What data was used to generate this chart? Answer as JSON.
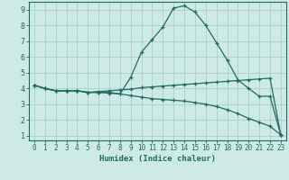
{
  "xlabel": "Humidex (Indice chaleur)",
  "bg_color": "#ceeae6",
  "grid_color": "#aacfcb",
  "line_color": "#1f6b60",
  "xlim": [
    -0.5,
    23.5
  ],
  "ylim": [
    0.7,
    9.5
  ],
  "xticks": [
    0,
    1,
    2,
    3,
    4,
    5,
    6,
    7,
    8,
    9,
    10,
    11,
    12,
    13,
    14,
    15,
    16,
    17,
    18,
    19,
    20,
    21,
    22,
    23
  ],
  "yticks": [
    1,
    2,
    3,
    4,
    5,
    6,
    7,
    8,
    9
  ],
  "line1_x": [
    0,
    1,
    2,
    3,
    4,
    5,
    6,
    7,
    8,
    9,
    10,
    11,
    12,
    13,
    14,
    15,
    16,
    17,
    18,
    19,
    20,
    21,
    22,
    23
  ],
  "line1_y": [
    4.2,
    4.0,
    3.85,
    3.85,
    3.85,
    3.75,
    3.75,
    3.75,
    3.65,
    4.7,
    6.3,
    7.1,
    7.9,
    9.1,
    9.25,
    8.85,
    8.0,
    6.9,
    5.8,
    4.55,
    4.0,
    3.5,
    3.5,
    1.05
  ],
  "line2_x": [
    0,
    1,
    2,
    3,
    4,
    5,
    6,
    7,
    8,
    9,
    10,
    11,
    12,
    13,
    14,
    15,
    16,
    17,
    18,
    19,
    20,
    21,
    22,
    23
  ],
  "line2_y": [
    4.2,
    4.0,
    3.85,
    3.85,
    3.85,
    3.75,
    3.8,
    3.85,
    3.9,
    3.95,
    4.05,
    4.1,
    4.15,
    4.2,
    4.25,
    4.3,
    4.35,
    4.4,
    4.45,
    4.5,
    4.55,
    4.6,
    4.65,
    1.05
  ],
  "line3_x": [
    0,
    1,
    2,
    3,
    4,
    5,
    6,
    7,
    8,
    9,
    10,
    11,
    12,
    13,
    14,
    15,
    16,
    17,
    18,
    19,
    20,
    21,
    22,
    23
  ],
  "line3_y": [
    4.2,
    4.0,
    3.85,
    3.85,
    3.85,
    3.75,
    3.75,
    3.7,
    3.65,
    3.55,
    3.45,
    3.35,
    3.3,
    3.25,
    3.2,
    3.1,
    3.0,
    2.85,
    2.65,
    2.4,
    2.1,
    1.85,
    1.6,
    1.05
  ]
}
